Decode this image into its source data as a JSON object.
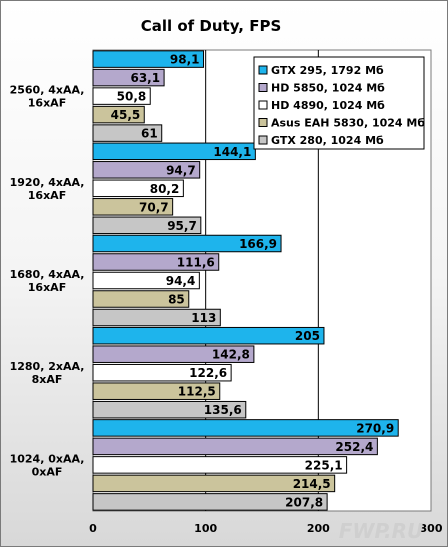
{
  "chart_data": {
    "type": "bar",
    "orientation": "horizontal",
    "title": "Call of Duty,  FPS",
    "xlabel": "",
    "ylabel": "",
    "xlim": [
      0,
      300
    ],
    "xticks": [
      0,
      100,
      200,
      300
    ],
    "grid": true,
    "legend_position": "top-right",
    "categories": [
      "2560, 4xAA,\n16xAF",
      "1920, 4xAA,\n16xAF",
      "1680, 4xAA,\n16xAF",
      "1280, 2xAA,\n8xAF",
      "1024, 0xAA,\n0xAF"
    ],
    "series": [
      {
        "name": "GTX 295, 1792 Мб",
        "color": "#1eb4ec",
        "values": [
          "98,1",
          "144,1",
          "166,9",
          "205",
          "270,9"
        ]
      },
      {
        "name": "HD 5850, 1024 Мб",
        "color": "#b4a8cc",
        "values": [
          "63,1",
          "94,7",
          "111,6",
          "142,8",
          "252,4"
        ]
      },
      {
        "name": "HD 4890, 1024 Мб",
        "color": "#ffffff",
        "values": [
          "50,8",
          "80,2",
          "94,4",
          "122,6",
          "225,1"
        ]
      },
      {
        "name": "Asus EAH 5830, 1024 Мб",
        "color": "#cbc49c",
        "values": [
          "45,5",
          "70,7",
          "85",
          "112,5",
          "214,5"
        ]
      },
      {
        "name": "GTX 280, 1024 Мб",
        "color": "#c6c6c6",
        "values": [
          "61",
          "95,7",
          "113",
          "135,6",
          "207,8"
        ]
      }
    ]
  },
  "watermark": "FWP.RU"
}
